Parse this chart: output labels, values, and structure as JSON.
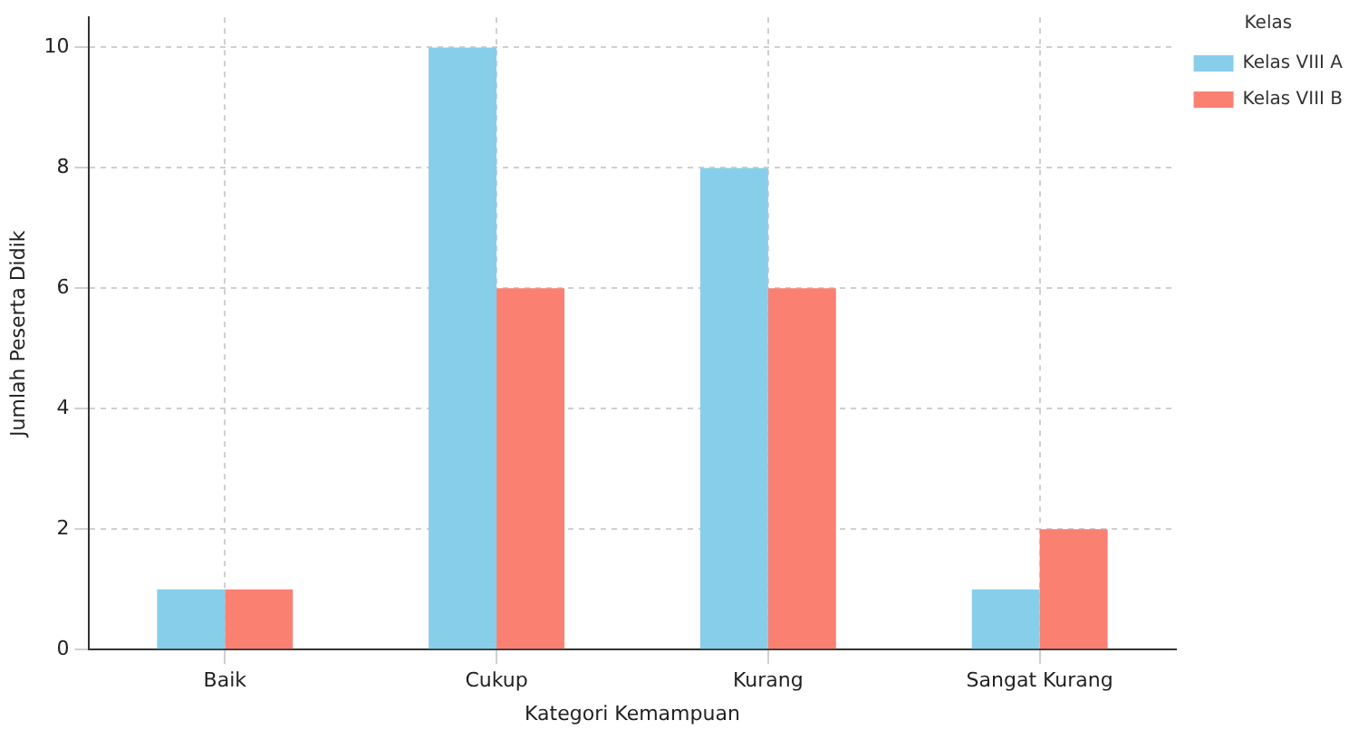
{
  "chart_data": {
    "type": "bar",
    "xlabel": "Kategori Kemampuan",
    "ylabel": "Jumlah Peserta Didik",
    "legend_title": "Kelas",
    "categories": [
      "Baik",
      "Cukup",
      "Kurang",
      "Sangat Kurang"
    ],
    "series": [
      {
        "name": "Kelas VIII A",
        "color": "#87ceeb",
        "values": [
          1,
          10,
          8,
          1
        ]
      },
      {
        "name": "Kelas VIII B",
        "color": "#fa8072",
        "values": [
          1,
          6,
          6,
          2
        ]
      }
    ],
    "ylim": [
      0,
      10.5
    ],
    "yticks": [
      0,
      2,
      4,
      6,
      8,
      10
    ],
    "grid": true,
    "legend": "top right"
  }
}
